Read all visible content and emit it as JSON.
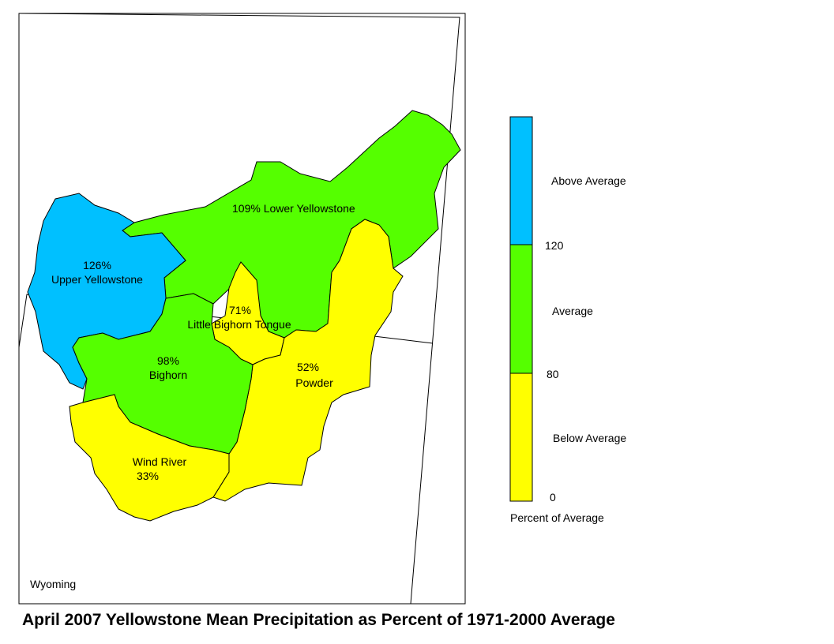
{
  "title": "April 2007 Yellowstone Mean Precipitation as Percent of 1971-2000 Average",
  "state_label": "Wyoming",
  "colors": {
    "above": "#00c0ff",
    "average": "#55ff00",
    "below": "#ffff00",
    "outline": "#000000"
  },
  "basins": {
    "lower_yellowstone": {
      "name": "Lower Yellowstone",
      "percent": "109%",
      "category": "average"
    },
    "upper_yellowstone": {
      "name": "Upper Yellowstone",
      "percent": "126%",
      "category": "above"
    },
    "little_bighorn_tongue": {
      "name": "Little Bighorn Tongue",
      "percent": "71%",
      "category": "below"
    },
    "bighorn": {
      "name": "Bighorn",
      "percent": "98%",
      "category": "average"
    },
    "powder": {
      "name": "Powder",
      "percent": "52%",
      "category": "below"
    },
    "wind_river": {
      "name": "Wind River",
      "percent": "33%",
      "category": "below"
    }
  },
  "legend": {
    "categories": [
      "Above Average",
      "Average",
      "Below Average"
    ],
    "breaks": [
      "120",
      "80",
      "0"
    ],
    "caption": "Percent of Average"
  }
}
